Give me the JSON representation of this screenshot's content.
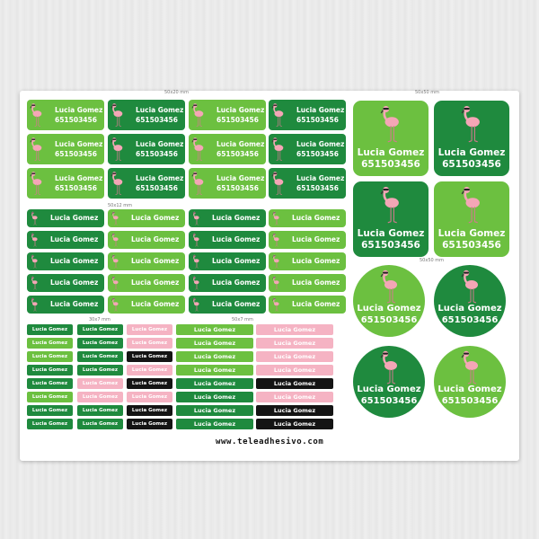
{
  "sticker": {
    "name": "Lucia Gomez",
    "phone": "651503456"
  },
  "sizes": {
    "s50x20": "50x20 mm",
    "s50x50a": "50x50 mm",
    "s50x12": "50x12 mm",
    "s50x50b": "50x50 mm",
    "s30x7": "30x7 mm",
    "s50x7": "50x7 mm"
  },
  "website": "www.teleadhesivo.com",
  "colors": {
    "light_green": "#6cc040",
    "dark_green": "#1f8a3e",
    "pink": "#f5b3c3",
    "black": "#141414",
    "flamingo": "#f4a6b6"
  },
  "icons": [
    "flamingo-icon"
  ]
}
